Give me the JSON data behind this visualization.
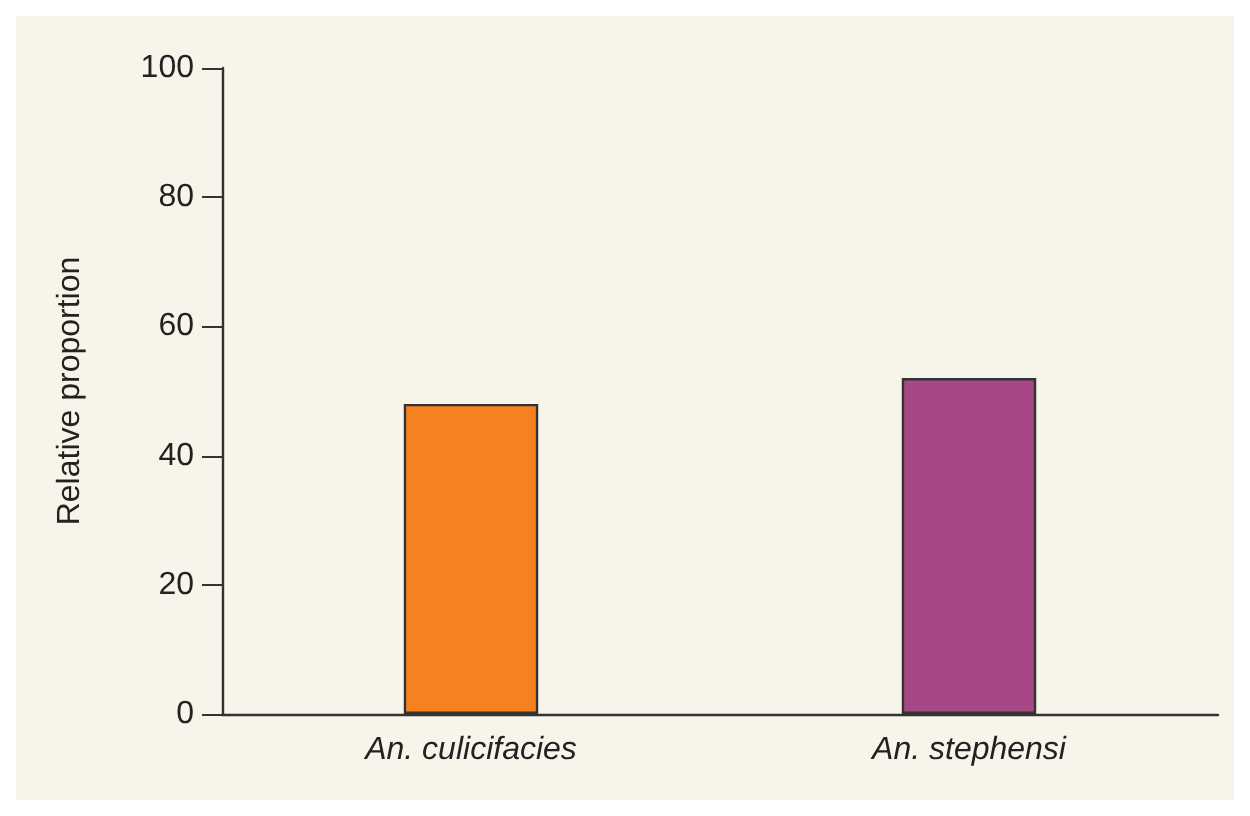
{
  "chart_data": {
    "type": "bar",
    "ylabel": "Relative proportion",
    "categories": [
      "An. culicifacies",
      "An. stephensi"
    ],
    "values": [
      48,
      52
    ],
    "colors": [
      "#f5821f",
      "#a54885"
    ],
    "ylim": [
      0,
      100
    ],
    "yticks": [
      0,
      20,
      40,
      60,
      80,
      100
    ],
    "grid": false
  }
}
